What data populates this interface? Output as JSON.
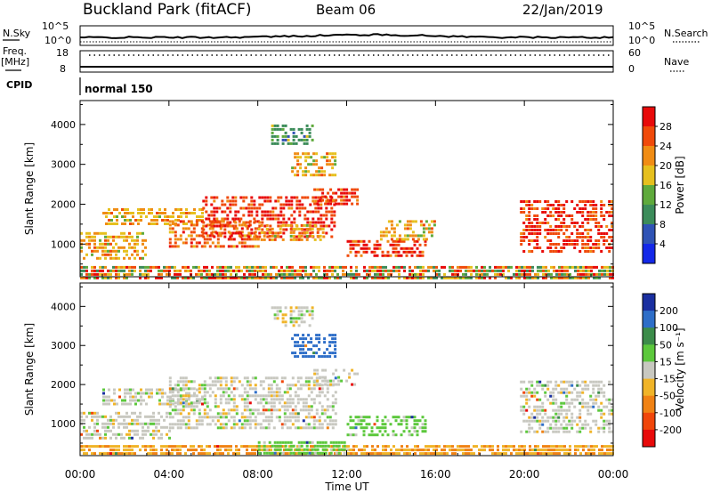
{
  "header": {
    "station": "Buckland Park (fitACF)",
    "beam": "Beam 06",
    "date": "22/Jan/2019"
  },
  "strips": {
    "nsky_label": "N.Sky",
    "nsearch_label": "N.Search",
    "count_ticks": [
      "10^5",
      "10^0"
    ],
    "freq_label_top": "Freq.",
    "freq_label_bottom": "[MHz]",
    "freq_ticks": [
      "18",
      "8"
    ],
    "nave_label": "Nave",
    "nave_ticks": [
      "60",
      "0"
    ],
    "cpid_label": "CPID",
    "cpid_value": "normal 150"
  },
  "colorbars": {
    "power": {
      "label": "Power [dB]",
      "ticks": [
        "4",
        "8",
        "12",
        "16",
        "20",
        "24",
        "28"
      ],
      "colors": [
        "#1428e8",
        "#2f53b5",
        "#3c8c5a",
        "#5faa3c",
        "#e6c01e",
        "#f08c14",
        "#f04a0a",
        "#e80a0a"
      ]
    },
    "velocity": {
      "label": "Velocity [m s⁻¹]",
      "ticks": [
        "200",
        "100",
        "50",
        "15",
        "-15",
        "-50",
        "-100",
        "-200"
      ],
      "colors": [
        "#1a2fa0",
        "#2e6ec8",
        "#3c8c4a",
        "#5cc83c",
        "#c8c8c0",
        "#f0b428",
        "#f08214",
        "#f0460a",
        "#e80a0a"
      ]
    }
  },
  "chart_data": [
    {
      "type": "line",
      "title": "N.Sky / N.Search",
      "y_ticks": [
        "10^5",
        "10^0"
      ],
      "x_range": [
        "00:00",
        "00:00"
      ],
      "note": "Noise level trace, roughly flat near low values with small rise around 10:00"
    },
    {
      "type": "scatter",
      "title": "Freq. [MHz] / Nave",
      "y_ticks_left": [
        "18",
        "8"
      ],
      "y_ticks_right": [
        "60",
        "0"
      ],
      "note": "Frequency near 10 MHz all day; Nave dotted near 55"
    },
    {
      "type": "heatmap",
      "ylabel": "Slant Range [km]",
      "y_ticks": [
        1000,
        2000,
        3000,
        4000
      ],
      "ylim": [
        180,
        4600
      ],
      "x_ticks": [
        "00:00",
        "04:00",
        "08:00",
        "12:00",
        "16:00",
        "20:00",
        "00:00"
      ],
      "xlim_hours": [
        0,
        24
      ],
      "colorbar": "Power [dB]",
      "regions": [
        {
          "t0": 0.0,
          "t1": 24.0,
          "r0": 180,
          "r1": 450,
          "level": "mixed"
        },
        {
          "t0": 0.0,
          "t1": 3.0,
          "r0": 600,
          "r1": 1300,
          "level": 20
        },
        {
          "t0": 1.0,
          "t1": 5.5,
          "r0": 1500,
          "r1": 1900,
          "level": 20
        },
        {
          "t0": 4.0,
          "t1": 8.0,
          "r0": 900,
          "r1": 1600,
          "level": 24
        },
        {
          "t0": 5.5,
          "t1": 11.5,
          "r0": 1200,
          "r1": 2200,
          "level": 28
        },
        {
          "t0": 8.0,
          "t1": 11.0,
          "r0": 1100,
          "r1": 1500,
          "level": 20
        },
        {
          "t0": 10.5,
          "t1": 12.5,
          "r0": 2000,
          "r1": 2400,
          "level": 28
        },
        {
          "t0": 12.0,
          "t1": 15.5,
          "r0": 700,
          "r1": 1100,
          "level": 28
        },
        {
          "t0": 13.5,
          "t1": 16.0,
          "r0": 1100,
          "r1": 1600,
          "level": 20
        },
        {
          "t0": 19.8,
          "t1": 24.0,
          "r0": 800,
          "r1": 2100,
          "level": 28
        },
        {
          "t0": 8.6,
          "t1": 10.5,
          "r0": 3500,
          "r1": 4000,
          "level": 12
        },
        {
          "t0": 9.5,
          "t1": 11.5,
          "r0": 2700,
          "r1": 3300,
          "level": 20
        }
      ]
    },
    {
      "type": "heatmap",
      "ylabel": "Slant Range [km]",
      "y_ticks": [
        1000,
        2000,
        3000,
        4000
      ],
      "ylim": [
        180,
        4600
      ],
      "xlabel": "Time UT",
      "x_ticks": [
        "00:00",
        "04:00",
        "08:00",
        "12:00",
        "16:00",
        "20:00",
        "00:00"
      ],
      "xlim_hours": [
        0,
        24
      ],
      "colorbar": "Velocity [m s⁻¹]",
      "regions": [
        {
          "t0": 0.0,
          "t1": 24.0,
          "r0": 180,
          "r1": 450,
          "level": -50
        },
        {
          "t0": 0.0,
          "t1": 4.0,
          "r0": 600,
          "r1": 1300,
          "level": 0
        },
        {
          "t0": 1.0,
          "t1": 5.5,
          "r0": 1500,
          "r1": 1900,
          "level": 0
        },
        {
          "t0": 4.0,
          "t1": 11.5,
          "r0": 900,
          "r1": 2200,
          "level": 0
        },
        {
          "t0": 10.5,
          "t1": 12.5,
          "r0": 2000,
          "r1": 2400,
          "level": 0
        },
        {
          "t0": 12.0,
          "t1": 15.5,
          "r0": 700,
          "r1": 1200,
          "level": 30
        },
        {
          "t0": 8.0,
          "t1": 12.0,
          "r0": 250,
          "r1": 550,
          "level": 30
        },
        {
          "t0": 19.8,
          "t1": 24.0,
          "r0": 800,
          "r1": 2100,
          "level": 0
        },
        {
          "t0": 8.6,
          "t1": 10.5,
          "r0": 3500,
          "r1": 4000,
          "level": 0
        },
        {
          "t0": 9.5,
          "t1": 11.5,
          "r0": 2700,
          "r1": 3300,
          "level": 150
        }
      ]
    }
  ],
  "xaxis": {
    "label": "Time UT",
    "ticks": [
      "00:00",
      "04:00",
      "08:00",
      "12:00",
      "16:00",
      "20:00",
      "00:00"
    ]
  }
}
